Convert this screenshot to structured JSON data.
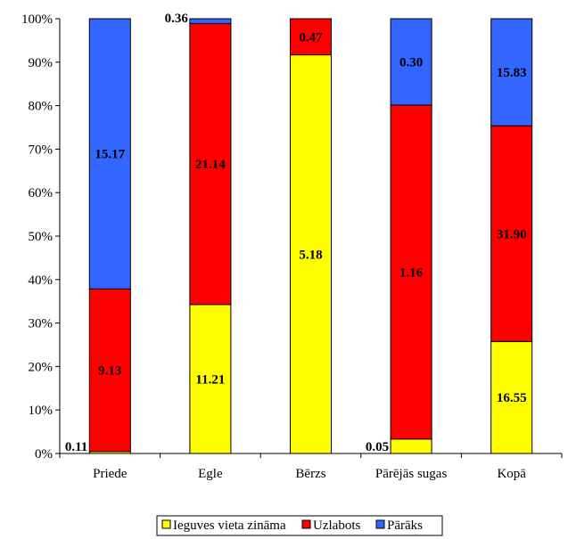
{
  "chart_data": {
    "type": "bar",
    "stacked": true,
    "normalized": true,
    "title": "",
    "xlabel": "",
    "ylabel": "",
    "ylim": [
      0,
      100
    ],
    "y_ticks": [
      "0%",
      "10%",
      "20%",
      "30%",
      "40%",
      "50%",
      "60%",
      "70%",
      "80%",
      "90%",
      "100%"
    ],
    "categories": [
      "Priede",
      "Egle",
      "Bērzs",
      "Pārējās sugas",
      "Kopā"
    ],
    "series": [
      {
        "name": "Ieguves vieta zināma",
        "color": "#FFFF00",
        "values": [
          0.11,
          11.21,
          5.18,
          0.05,
          16.55
        ],
        "labels": [
          "0.11",
          "11.21",
          "5.18",
          "0.05",
          "16.55"
        ]
      },
      {
        "name": "Uzlabots",
        "color": "#FF0000",
        "values": [
          9.13,
          21.14,
          0.47,
          1.16,
          31.9
        ],
        "labels": [
          "9.13",
          "21.14",
          "0.47",
          "1.16",
          "31.90"
        ]
      },
      {
        "name": "Pārāks",
        "color": "#3366FF",
        "values": [
          15.17,
          0.36,
          0,
          0.3,
          15.83
        ],
        "labels": [
          "15.17",
          "0.36",
          "",
          "0.30",
          "15.83"
        ]
      }
    ],
    "grid": false,
    "legend_position": "bottom"
  }
}
